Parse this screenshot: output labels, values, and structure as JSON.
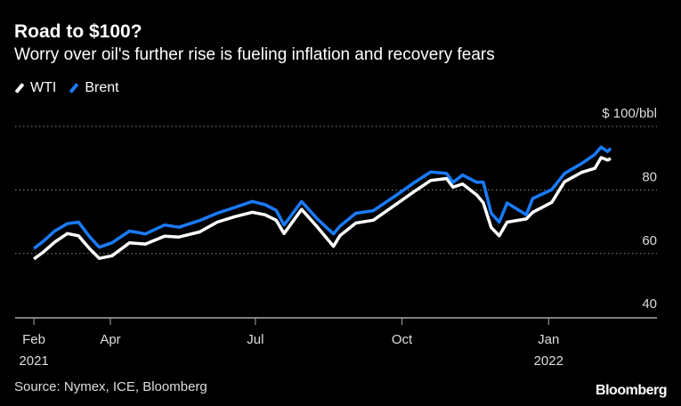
{
  "header": {
    "title": "Road to $100?",
    "subtitle": "Worry over oil's further rise is fueling inflation and recovery fears"
  },
  "footer": {
    "source": "Source: Nymex, ICE, Bloomberg",
    "logo": "Bloomberg"
  },
  "chart_data": {
    "type": "line",
    "ylabel": "$ 100/bbl",
    "ylim": [
      40,
      100
    ],
    "yticks": [
      {
        "value": 100,
        "label": "$ 100/bbl"
      },
      {
        "value": 80,
        "label": "80"
      },
      {
        "value": 60,
        "label": "60"
      },
      {
        "value": 40,
        "label": "40"
      }
    ],
    "xticks": [
      {
        "date": "2021-02-12",
        "label": "Feb",
        "sub": "2021"
      },
      {
        "date": "2021-04-01",
        "label": "Apr",
        "sub": ""
      },
      {
        "date": "2021-07-01",
        "label": "Jul",
        "sub": ""
      },
      {
        "date": "2021-10-01",
        "label": "Oct",
        "sub": ""
      },
      {
        "date": "2022-01-01",
        "label": "Jan",
        "sub": "2022"
      }
    ],
    "grid": true,
    "legend": "top-left",
    "colors": {
      "WTI": "#ffffff",
      "Brent": "#1a7bff"
    },
    "x": [
      "2021-02-12",
      "2021-02-18",
      "2021-02-25",
      "2021-03-05",
      "2021-03-12",
      "2021-03-19",
      "2021-03-25",
      "2021-04-02",
      "2021-04-13",
      "2021-04-23",
      "2021-05-05",
      "2021-05-14",
      "2021-05-27",
      "2021-06-07",
      "2021-06-18",
      "2021-06-29",
      "2021-07-07",
      "2021-07-14",
      "2021-07-19",
      "2021-07-30",
      "2021-08-09",
      "2021-08-19",
      "2021-08-23",
      "2021-09-02",
      "2021-09-13",
      "2021-09-27",
      "2021-10-08",
      "2021-10-19",
      "2021-10-29",
      "2021-11-02",
      "2021-11-08",
      "2021-11-17",
      "2021-11-21",
      "2021-11-26",
      "2021-12-01",
      "2021-12-06",
      "2021-12-18",
      "2021-12-22",
      "2022-01-03",
      "2022-01-11",
      "2022-01-22",
      "2022-01-30",
      "2022-02-03",
      "2022-02-07",
      "2022-02-09"
    ],
    "series": [
      {
        "name": "WTI",
        "values": [
          58.3,
          60.5,
          63.6,
          66.3,
          65.6,
          61.5,
          58.5,
          59.3,
          63.4,
          63.0,
          65.5,
          65.2,
          66.8,
          69.9,
          71.6,
          73.0,
          72.2,
          70.5,
          66.3,
          73.9,
          68.3,
          62.3,
          65.6,
          69.6,
          70.5,
          75.4,
          79.3,
          83.0,
          83.6,
          80.9,
          81.9,
          78.4,
          76.0,
          68.2,
          65.6,
          69.9,
          70.9,
          73.0,
          76.1,
          82.6,
          85.6,
          86.8,
          90.2,
          89.4,
          89.9
        ]
      },
      {
        "name": "Brent",
        "values": [
          61.6,
          63.9,
          67.1,
          69.4,
          69.9,
          65.3,
          62.0,
          63.4,
          67.1,
          66.2,
          69.0,
          68.3,
          70.4,
          72.7,
          74.5,
          76.4,
          75.4,
          73.6,
          69.0,
          76.4,
          70.8,
          66.2,
          68.6,
          72.7,
          73.5,
          78.2,
          82.1,
          85.7,
          85.2,
          82.4,
          84.7,
          82.4,
          82.5,
          72.7,
          69.9,
          75.9,
          72.2,
          77.3,
          80.1,
          85.2,
          88.4,
          91.2,
          93.5,
          92.1,
          93.1
        ]
      }
    ]
  }
}
